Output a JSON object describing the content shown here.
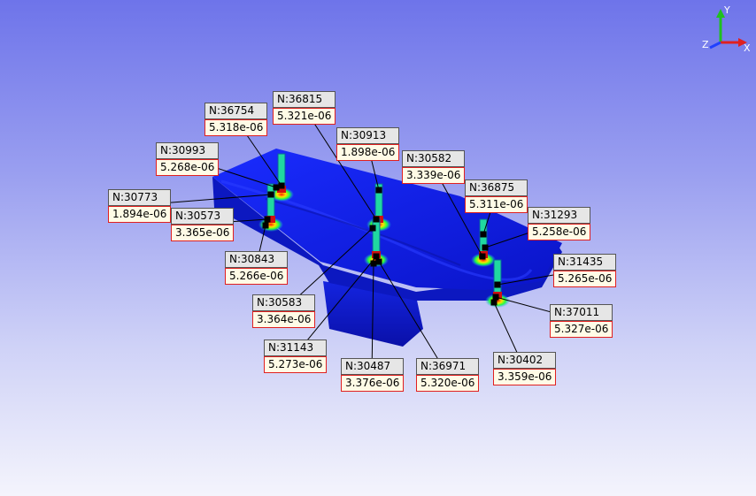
{
  "axes": {
    "x_label": "X",
    "y_label": "Y",
    "z_label": "Z",
    "x_color": "#e02020",
    "y_color": "#20c020",
    "z_color": "#2040ff"
  },
  "probes": [
    {
      "node": "N:36754",
      "value": "5.318e-06"
    },
    {
      "node": "N:36815",
      "value": "5.321e-06"
    },
    {
      "node": "N:30913",
      "value": "1.898e-06"
    },
    {
      "node": "N:30993",
      "value": "5.268e-06"
    },
    {
      "node": "N:30582",
      "value": "3.339e-06"
    },
    {
      "node": "N:36875",
      "value": "5.311e-06"
    },
    {
      "node": "N:30773",
      "value": "1.894e-06"
    },
    {
      "node": "N:30573",
      "value": "3.365e-06"
    },
    {
      "node": "N:31293",
      "value": "5.258e-06"
    },
    {
      "node": "N:30843",
      "value": "5.266e-06"
    },
    {
      "node": "N:31435",
      "value": "5.265e-06"
    },
    {
      "node": "N:30583",
      "value": "3.364e-06"
    },
    {
      "node": "N:37011",
      "value": "5.327e-06"
    },
    {
      "node": "N:31143",
      "value": "5.273e-06"
    },
    {
      "node": "N:30487",
      "value": "3.376e-06"
    },
    {
      "node": "N:36971",
      "value": "5.320e-06"
    },
    {
      "node": "N:30402",
      "value": "3.359e-06"
    }
  ]
}
